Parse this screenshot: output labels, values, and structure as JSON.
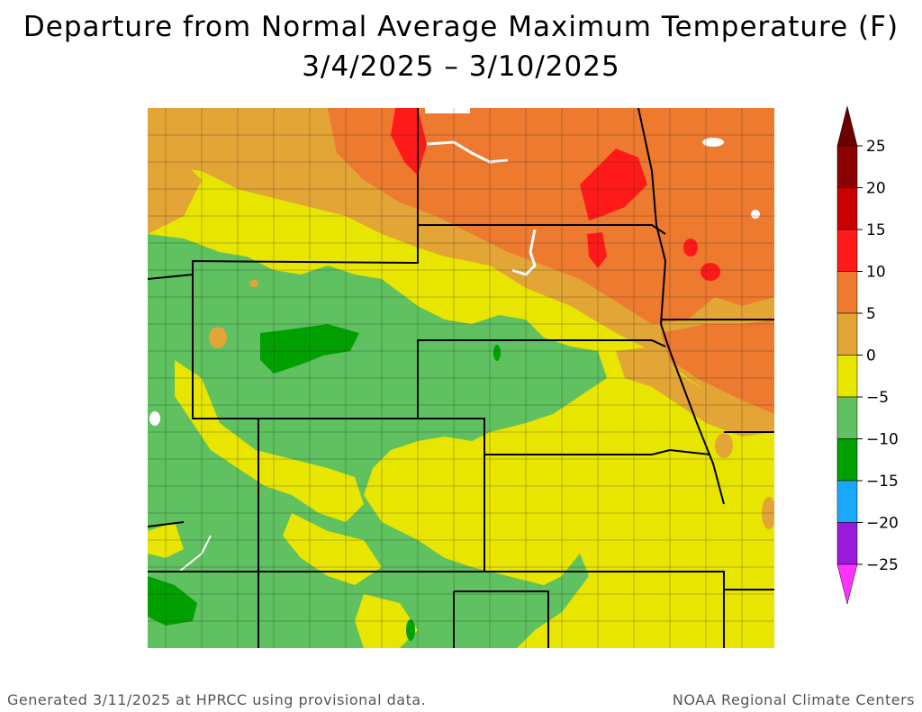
{
  "title": "Departure from Normal Average Maximum Temperature (F)",
  "subtitle": "3/4/2025 – 3/10/2025",
  "legend": {
    "ticks": [
      "25",
      "20",
      "15",
      "10",
      "5",
      "0",
      "−5",
      "−10",
      "−15",
      "−20",
      "−25"
    ],
    "bins": [
      {
        "range": "20 to 25",
        "color": "#8b0000"
      },
      {
        "range": "15 to 20",
        "color": "#c80000"
      },
      {
        "range": "10 to 15",
        "color": "#ff1a1a"
      },
      {
        "range": "5 to 10",
        "color": "#ee7a30"
      },
      {
        "range": "0 to 5",
        "color": "#e3a535"
      },
      {
        "range": "-5 to 0",
        "color": "#e8e600"
      },
      {
        "range": "-10 to -5",
        "color": "#5fc15f"
      },
      {
        "range": "-15 to -10",
        "color": "#00a000"
      },
      {
        "range": "-20 to -15",
        "color": "#1aa8ff"
      },
      {
        "range": "-25 to -20",
        "color": "#9a1adc"
      }
    ],
    "top_arrow_color": "#6b0000",
    "bottom_arrow_color": "#ff33ff"
  },
  "footer": {
    "left": "Generated 3/11/2025 at HPRCC using provisional data.",
    "right": "NOAA Regional Climate Centers"
  }
}
